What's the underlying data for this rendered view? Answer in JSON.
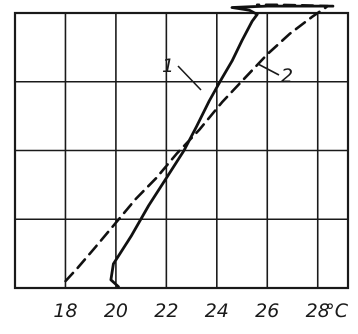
{
  "chart_data": {
    "type": "line",
    "title": "",
    "xlabel": "",
    "ylabel": "",
    "x_unit": "°C",
    "xlim": [
      16,
      29.2
    ],
    "ylim": [
      0,
      4
    ],
    "x_ticks": [
      18,
      20,
      22,
      24,
      26,
      28
    ],
    "x_tick_labels": [
      "18",
      "20",
      "22",
      "24",
      "26",
      "28"
    ],
    "y_gridlines": [
      1,
      2,
      3
    ],
    "grid": true,
    "legend": "none",
    "series": [
      {
        "name": "1",
        "style": "solid",
        "points": [
          [
            20.1,
            0.02
          ],
          [
            19.8,
            0.12
          ],
          [
            19.9,
            0.35
          ],
          [
            20.6,
            0.75
          ],
          [
            21.3,
            1.2
          ],
          [
            22.0,
            1.6
          ],
          [
            22.7,
            2.0
          ],
          [
            23.2,
            2.35
          ],
          [
            23.7,
            2.72
          ],
          [
            24.2,
            3.05
          ],
          [
            24.6,
            3.3
          ],
          [
            25.0,
            3.6
          ],
          [
            25.4,
            3.88
          ],
          [
            25.6,
            3.98
          ],
          [
            25.3,
            4.04
          ],
          [
            24.6,
            4.08
          ],
          [
            26.0,
            4.1
          ],
          [
            27.5,
            4.1
          ],
          [
            28.6,
            4.1
          ]
        ]
      },
      {
        "name": "2",
        "style": "dashed",
        "points": [
          [
            18.0,
            0.1
          ],
          [
            18.5,
            0.3
          ],
          [
            19.2,
            0.6
          ],
          [
            20.0,
            0.95
          ],
          [
            20.8,
            1.3
          ],
          [
            21.6,
            1.6
          ],
          [
            22.4,
            1.95
          ],
          [
            23.3,
            2.3
          ],
          [
            24.2,
            2.7
          ],
          [
            25.1,
            3.05
          ],
          [
            26.0,
            3.4
          ],
          [
            26.9,
            3.7
          ],
          [
            27.8,
            3.95
          ],
          [
            28.4,
            4.1
          ],
          [
            27.6,
            4.11
          ],
          [
            26.4,
            4.12
          ],
          [
            25.6,
            4.12
          ]
        ]
      }
    ],
    "annotations": [
      {
        "text": "1",
        "series": "1"
      },
      {
        "text": "2",
        "series": "2"
      }
    ]
  }
}
